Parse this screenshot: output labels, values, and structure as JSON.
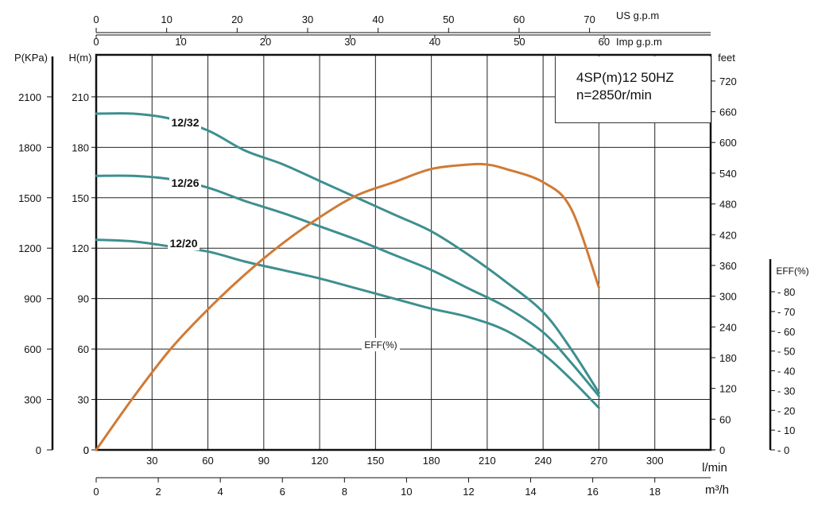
{
  "chart_data": {
    "type": "line",
    "title_lines": [
      "4SP(m)12  50HZ",
      "n=2850r/min"
    ],
    "x_axis": {
      "label": "l/min",
      "ticks": [
        "30",
        "60",
        "90",
        "120",
        "150",
        "180",
        "210",
        "240",
        "270",
        "300"
      ],
      "range": [
        0,
        330
      ]
    },
    "x_axis_m3h": {
      "label": "m³/h",
      "ticks": [
        "0",
        "2",
        "4",
        "6",
        "8",
        "10",
        "12",
        "14",
        "16",
        "18"
      ]
    },
    "x_axis_us_gpm": {
      "label": "US g.p.m",
      "ticks": [
        "0",
        "10",
        "20",
        "30",
        "40",
        "50",
        "60",
        "70"
      ]
    },
    "x_axis_imp_gpm": {
      "label": "Imp g.p.m",
      "ticks": [
        "0",
        "10",
        "20",
        "30",
        "40",
        "50",
        "60"
      ]
    },
    "y_axis_head": {
      "label": "H(m)",
      "ticks": [
        "0",
        "30",
        "60",
        "90",
        "120",
        "150",
        "180",
        "210"
      ],
      "range": [
        0,
        235
      ]
    },
    "y_axis_pressure": {
      "label": "P(KPa)",
      "ticks": [
        "0",
        "300",
        "600",
        "900",
        "1200",
        "1500",
        "1800",
        "2100"
      ]
    },
    "y_axis_feet": {
      "label": "feet",
      "ticks": [
        "0",
        "60",
        "120",
        "180",
        "240",
        "300",
        "360",
        "420",
        "480",
        "540",
        "600",
        "660",
        "720"
      ]
    },
    "y_axis_eff": {
      "label": "EFF(%)",
      "ticks": [
        "0",
        "10",
        "20",
        "30",
        "40",
        "50",
        "60",
        "70",
        "80"
      ],
      "range": [
        0,
        90
      ]
    },
    "grid": true,
    "colors": {
      "head_curves": "#3e8f8f",
      "efficiency": "#d07a35",
      "axis": "#111111"
    },
    "series": [
      {
        "name": "12/32",
        "x": [
          0,
          20,
          40,
          60,
          80,
          100,
          120,
          140,
          160,
          180,
          200,
          220,
          240,
          255,
          270
        ],
        "y": [
          200,
          200,
          197,
          190,
          178,
          170,
          160,
          150,
          140,
          130,
          116,
          100,
          82,
          60,
          34
        ]
      },
      {
        "name": "12/26",
        "x": [
          0,
          20,
          40,
          60,
          80,
          100,
          120,
          140,
          160,
          180,
          200,
          220,
          240,
          255,
          270
        ],
        "y": [
          163,
          163,
          161,
          156,
          148,
          141,
          133,
          125,
          116,
          107,
          96,
          85,
          70,
          52,
          32
        ]
      },
      {
        "name": "12/20",
        "x": [
          0,
          20,
          40,
          60,
          80,
          100,
          120,
          140,
          160,
          180,
          200,
          220,
          240,
          255,
          270
        ],
        "y": [
          125,
          124,
          121,
          118,
          112,
          107,
          102,
          96,
          90,
          84,
          79,
          71,
          57,
          42,
          25
        ]
      },
      {
        "name": "EFF(%)",
        "x": [
          0,
          20,
          40,
          60,
          80,
          100,
          120,
          140,
          160,
          180,
          200,
          210,
          220,
          240,
          255,
          270
        ],
        "y": [
          0,
          12,
          23,
          32,
          40,
          47,
          53,
          58,
          61,
          64,
          65,
          65,
          64,
          61,
          55,
          37
        ]
      }
    ]
  }
}
